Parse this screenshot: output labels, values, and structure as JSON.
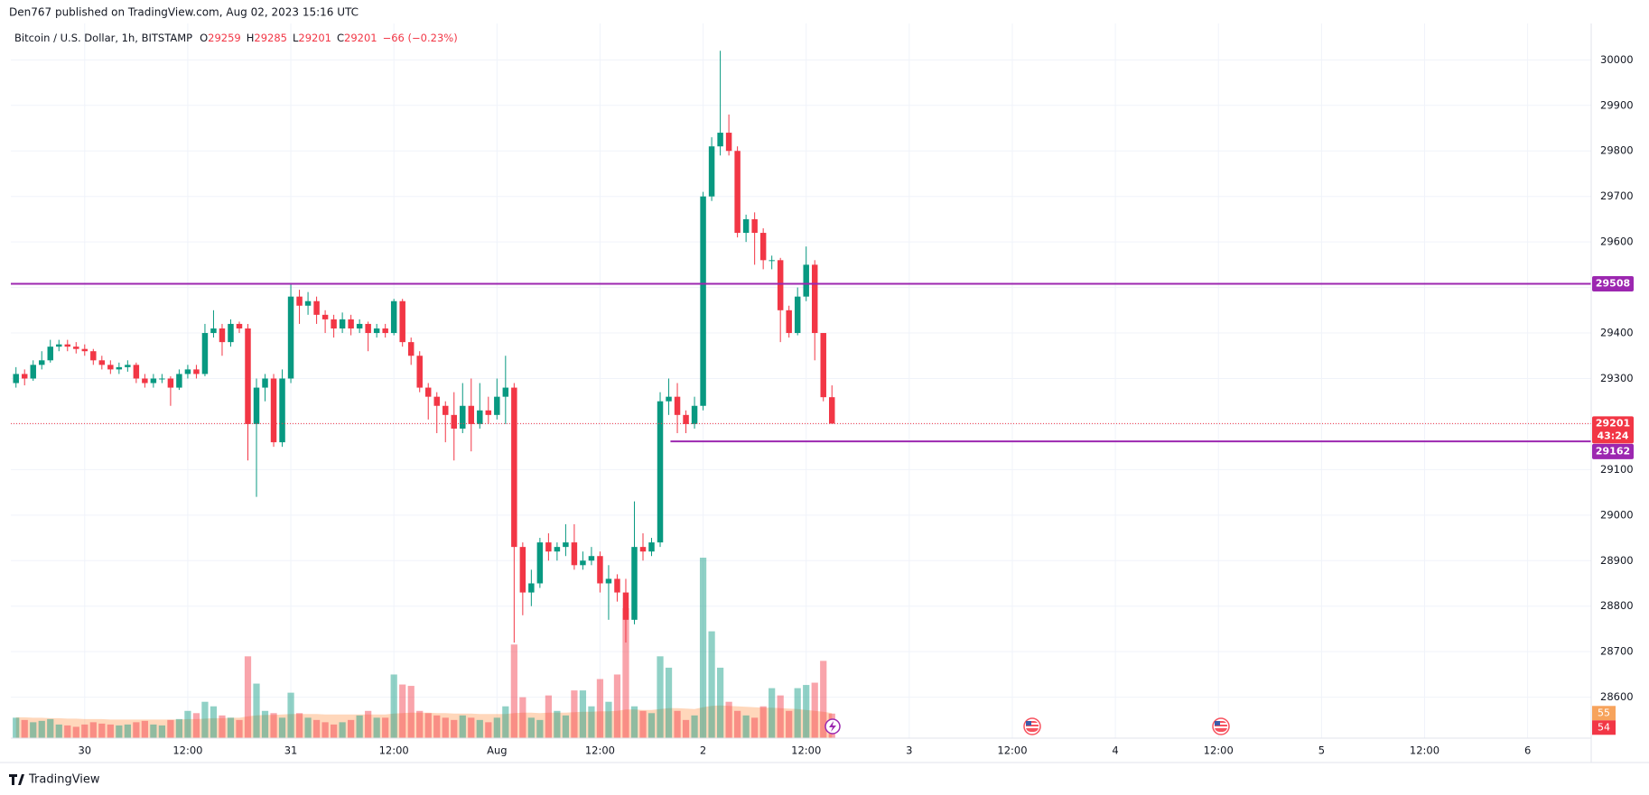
{
  "chart_data": {
    "type": "candlestick",
    "attribution": "Den767 published on TradingView.com, Aug 02, 2023 15:16 UTC",
    "title": "Bitcoin / U.S. Dollar, 1h, BITSTAMP",
    "ohlc_labels": [
      "O",
      "H",
      "L",
      "C"
    ],
    "change_label": "−66 (−0.23%)",
    "countdown": "43:24",
    "footer_brand": "TradingView",
    "up_color": "#089981",
    "down_color": "#f23645",
    "grid": true,
    "open": [
      29290,
      29310,
      29300,
      29330,
      29340,
      29370,
      29375,
      29370,
      29365,
      29360,
      29340,
      29330,
      29320,
      29325,
      29330,
      29300,
      29290,
      29300,
      29300,
      29280,
      29310,
      29320,
      29310,
      29400,
      29410,
      29380,
      29420,
      29410,
      29200,
      29280,
      29300,
      29160,
      29300,
      29480,
      29460,
      29470,
      29440,
      29430,
      29410,
      29430,
      29410,
      29420,
      29400,
      29410,
      29400,
      29470,
      29380,
      29350,
      29280,
      29260,
      29240,
      29220,
      29190,
      29240,
      29200,
      29230,
      29220,
      29260,
      29280,
      28930,
      28830,
      28850,
      28940,
      28920,
      28930,
      28940,
      28890,
      28900,
      28910,
      28850,
      28860,
      28830,
      28770,
      28930,
      28920,
      28940,
      29250,
      29260,
      29220,
      29200,
      29240,
      29700,
      29810,
      29840,
      29800,
      29620,
      29650,
      29620,
      29560,
      29560,
      29450,
      29400,
      29480,
      29550,
      29400,
      29259
    ],
    "high": [
      29325,
      29320,
      29340,
      29360,
      29385,
      29385,
      29385,
      29380,
      29375,
      29365,
      29350,
      29340,
      29335,
      29340,
      29335,
      29310,
      29310,
      29310,
      29305,
      29320,
      29330,
      29330,
      29420,
      29450,
      29420,
      29430,
      29425,
      29420,
      29300,
      29310,
      29310,
      29320,
      29510,
      29495,
      29490,
      29480,
      29450,
      29440,
      29445,
      29440,
      29430,
      29425,
      29420,
      29420,
      29475,
      29475,
      29390,
      29360,
      29290,
      29270,
      29250,
      29270,
      29290,
      29300,
      29290,
      29260,
      29300,
      29350,
      29290,
      28940,
      28880,
      28950,
      28960,
      28940,
      28980,
      28980,
      28920,
      28930,
      28920,
      28890,
      28870,
      28860,
      29030,
      28960,
      28950,
      29270,
      29300,
      29290,
      29230,
      29260,
      29710,
      29830,
      30020,
      29880,
      29810,
      29660,
      29665,
      29630,
      29570,
      29565,
      29460,
      29500,
      29590,
      29560,
      29400,
      29285
    ],
    "low": [
      29280,
      29285,
      29295,
      29320,
      29335,
      29360,
      29360,
      29355,
      29350,
      29330,
      29320,
      29310,
      29310,
      29315,
      29290,
      29280,
      29280,
      29290,
      29240,
      29275,
      29300,
      29300,
      29305,
      29390,
      29350,
      29370,
      29400,
      29120,
      29040,
      29250,
      29150,
      29150,
      29290,
      29420,
      29440,
      29420,
      29400,
      29390,
      29400,
      29395,
      29400,
      29360,
      29390,
      29390,
      29395,
      29370,
      29330,
      29270,
      29210,
      29180,
      29160,
      29120,
      29180,
      29140,
      29190,
      29200,
      29210,
      29200,
      28720,
      28780,
      28800,
      28840,
      28900,
      28900,
      28910,
      28880,
      28880,
      28890,
      28830,
      28770,
      28810,
      28720,
      28760,
      28900,
      28910,
      28930,
      29220,
      29180,
      29180,
      29190,
      29230,
      29690,
      29790,
      29790,
      29610,
      29600,
      29550,
      29540,
      29540,
      29380,
      29390,
      29395,
      29470,
      29340,
      29250,
      29201
    ],
    "close": [
      29310,
      29300,
      29330,
      29340,
      29370,
      29375,
      29370,
      29365,
      29360,
      29340,
      29330,
      29320,
      29325,
      29330,
      29300,
      29290,
      29300,
      29300,
      29280,
      29310,
      29320,
      29310,
      29400,
      29410,
      29380,
      29420,
      29410,
      29200,
      29280,
      29300,
      29160,
      29300,
      29480,
      29460,
      29470,
      29440,
      29430,
      29410,
      29430,
      29410,
      29420,
      29400,
      29410,
      29400,
      29470,
      29380,
      29350,
      29280,
      29260,
      29240,
      29220,
      29190,
      29240,
      29200,
      29230,
      29220,
      29260,
      29280,
      28930,
      28830,
      28850,
      28940,
      28920,
      28930,
      28940,
      28890,
      28900,
      28910,
      28850,
      28860,
      28830,
      28770,
      28930,
      28920,
      28940,
      29250,
      29260,
      29220,
      29200,
      29240,
      29700,
      29810,
      29840,
      29800,
      29620,
      29650,
      29620,
      29560,
      29560,
      29450,
      29400,
      29480,
      29550,
      29400,
      29259,
      29201
    ],
    "volume": [
      45,
      40,
      35,
      38,
      42,
      30,
      28,
      25,
      30,
      35,
      32,
      30,
      28,
      30,
      35,
      38,
      30,
      28,
      40,
      42,
      60,
      55,
      80,
      70,
      50,
      45,
      40,
      180,
      120,
      60,
      55,
      45,
      100,
      55,
      45,
      40,
      35,
      30,
      35,
      40,
      50,
      60,
      45,
      45,
      140,
      118,
      115,
      60,
      55,
      50,
      45,
      40,
      50,
      45,
      40,
      35,
      45,
      70,
      206,
      90,
      45,
      40,
      94,
      60,
      50,
      105,
      105,
      70,
      130,
      80,
      140,
      286,
      70,
      60,
      55,
      180,
      155,
      60,
      40,
      50,
      397,
      235,
      155,
      80,
      60,
      50,
      45,
      70,
      110,
      94,
      60,
      110,
      117,
      122,
      170,
      54
    ],
    "volume_ma": [
      46,
      46,
      45,
      45,
      44,
      44,
      43,
      43,
      42,
      42,
      42,
      41,
      41,
      41,
      41,
      41,
      41,
      41,
      41,
      41,
      42,
      42,
      43,
      44,
      44,
      45,
      45,
      48,
      50,
      51,
      51,
      52,
      53,
      53,
      53,
      53,
      52,
      52,
      52,
      52,
      52,
      52,
      52,
      52,
      54,
      55,
      56,
      56,
      56,
      55,
      55,
      54,
      54,
      54,
      53,
      53,
      53,
      53,
      55,
      56,
      56,
      55,
      56,
      56,
      56,
      57,
      58,
      58,
      59,
      59,
      60,
      63,
      63,
      62,
      62,
      64,
      66,
      66,
      65,
      64,
      68,
      71,
      72,
      71,
      70,
      69,
      68,
      67,
      67,
      66,
      65,
      64,
      62,
      60,
      58,
      55
    ],
    "xlim": [
      -0.6,
      183.4
    ],
    "xticks": [
      {
        "value": 8,
        "label": "30"
      },
      {
        "value": 20,
        "label": "12:00"
      },
      {
        "value": 32,
        "label": "31"
      },
      {
        "value": 44,
        "label": "12:00"
      },
      {
        "value": 56,
        "label": "Aug"
      },
      {
        "value": 68,
        "label": "12:00"
      },
      {
        "value": 80,
        "label": "2"
      },
      {
        "value": 92,
        "label": "12:00"
      },
      {
        "value": 104,
        "label": "3"
      },
      {
        "value": 116,
        "label": "12:00"
      },
      {
        "value": 128,
        "label": "4"
      },
      {
        "value": 140,
        "label": "12:00"
      },
      {
        "value": 152,
        "label": "5"
      },
      {
        "value": 164,
        "label": "12:00"
      },
      {
        "value": 176,
        "label": "6"
      }
    ],
    "ylim": [
      28510,
      30080
    ],
    "yticks": [
      28600,
      28700,
      28800,
      28900,
      29000,
      29100,
      29200,
      29300,
      29400,
      29500,
      29600,
      29700,
      29800,
      29900,
      30000
    ],
    "hlines": [
      {
        "value": 29508,
        "color": "#9c27b0",
        "start_index": -0.6
      },
      {
        "value": 29162,
        "color": "#9c27b0",
        "start_index": 76.2
      }
    ]
  }
}
